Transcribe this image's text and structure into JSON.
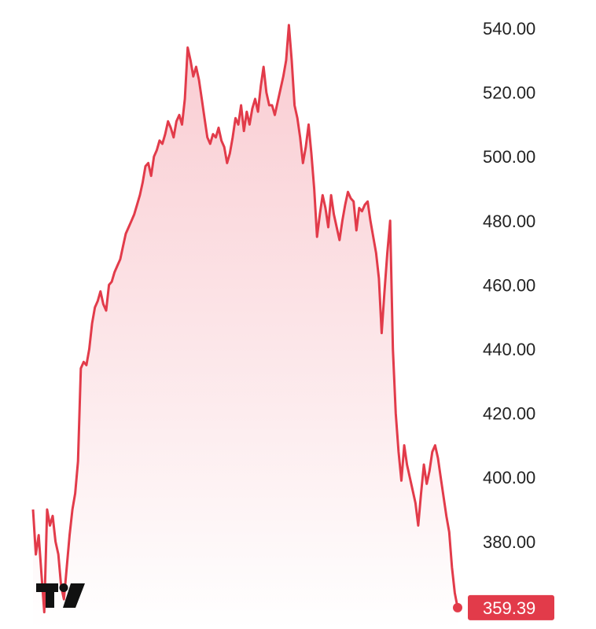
{
  "logo": {
    "text": "TV",
    "icon": "tradingview-logo-icon"
  },
  "chart_data": {
    "type": "area",
    "title": "",
    "xlabel": "",
    "ylabel": "",
    "y_ticks": [
      "540.00",
      "520.00",
      "500.00",
      "480.00",
      "460.00",
      "440.00",
      "420.00",
      "400.00",
      "380.00"
    ],
    "ylim": [
      355,
      545
    ],
    "grid": false,
    "legend": "none",
    "colors": {
      "line": "#e23b4a",
      "fill_top": "#f9c9cf",
      "fill_bottom": "#ffffff",
      "last_bg": "#e23b4a"
    },
    "last_value": 359.39,
    "last_value_label": "359.39",
    "series": [
      {
        "values": [
          390.0,
          376.0,
          382.0,
          370.0,
          358.0,
          390.0,
          385.0,
          388.0,
          380.0,
          376.0,
          366.0,
          362.0,
          372.0,
          382.0,
          390.0,
          395.0,
          405.0,
          434.0,
          436.0,
          435.0,
          440.0,
          448.0,
          453.0,
          455.0,
          458.0,
          454.0,
          452.0,
          460.0,
          461.0,
          464.0,
          466.0,
          468.0,
          472.0,
          476.0,
          478.0,
          480.0,
          482.0,
          485.0,
          488.0,
          492.0,
          497.0,
          498.0,
          494.0,
          500.0,
          502.0,
          505.0,
          504.0,
          507.0,
          511.0,
          509.0,
          506.0,
          511.0,
          513.0,
          510.0,
          518.0,
          534.0,
          530.0,
          525.0,
          528.0,
          524.0,
          518.0,
          512.0,
          506.0,
          504.0,
          507.0,
          506.0,
          509.0,
          505.0,
          503.0,
          498.0,
          501.0,
          506.0,
          512.0,
          510.0,
          516.0,
          508.0,
          514.0,
          510.0,
          515.0,
          518.0,
          514.0,
          522.0,
          528.0,
          520.0,
          516.0,
          516.0,
          513.0,
          517.0,
          521.0,
          525.0,
          530.0,
          541.0,
          530.0,
          516.0,
          512.0,
          506.0,
          498.0,
          503.0,
          510.0,
          501.0,
          490.0,
          475.0,
          482.0,
          488.0,
          484.0,
          478.0,
          488.0,
          482.0,
          478.0,
          474.0,
          480.0,
          485.0,
          489.0,
          487.0,
          486.0,
          477.0,
          484.0,
          483.0,
          485.0,
          486.0,
          480.0,
          475.0,
          470.0,
          462.0,
          445.0,
          458.0,
          470.0,
          480.0,
          440.0,
          420.0,
          408.0,
          399.0,
          410.0,
          404.0,
          400.0,
          396.0,
          392.0,
          385.0,
          395.0,
          404.0,
          398.0,
          402.0,
          408.0,
          410.0,
          406.0,
          400.0,
          394.0,
          388.0,
          383.0,
          372.0,
          364.0,
          359.39
        ]
      }
    ]
  }
}
